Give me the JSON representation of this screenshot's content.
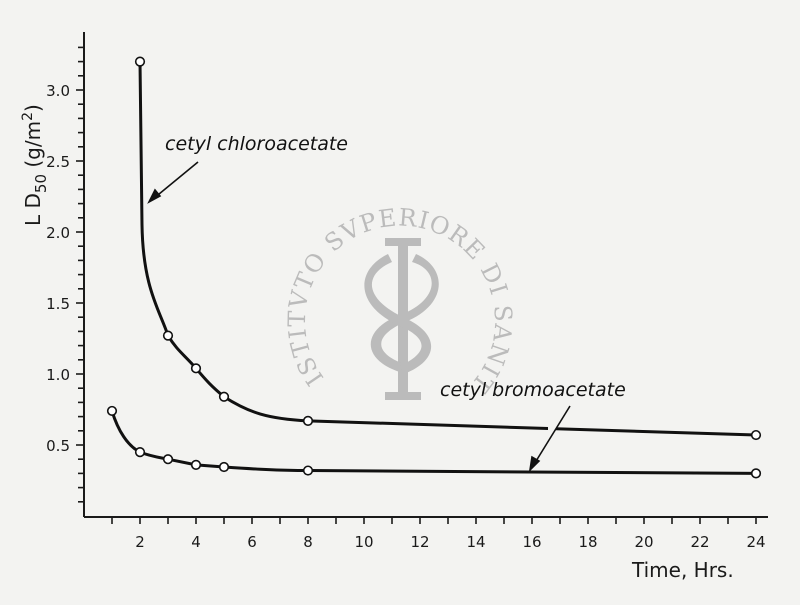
{
  "chart_data": {
    "type": "line",
    "title": "",
    "xlabel": "Time, Hrs.",
    "ylabel": "LD50 (g/m2)",
    "ylabel_parts": {
      "main": "L D",
      "sub": "50",
      "unit_open": " (g/m",
      "sup": "2",
      "unit_close": ")"
    },
    "xlim": [
      0,
      25
    ],
    "ylim": [
      0,
      3.4
    ],
    "x_ticks": [
      2,
      4,
      6,
      8,
      10,
      12,
      14,
      16,
      18,
      20,
      22,
      24
    ],
    "x_minor_ticks": [
      1,
      3,
      5,
      7,
      9,
      11,
      13,
      15,
      17,
      19,
      21,
      23
    ],
    "y_ticks": [
      0.5,
      1.0,
      1.5,
      2.0,
      2.5,
      3.0
    ],
    "y_tick_labels": [
      "0.5",
      "1.0",
      "1.5",
      "2.0",
      "2.5",
      "3.0"
    ],
    "y_minor_step": 0.1,
    "grid": false,
    "legend": "inline annotations with arrows",
    "series": [
      {
        "name": "cetyl chloroacetate",
        "marker": "open-circle",
        "x": [
          2,
          3,
          4,
          5,
          8,
          24
        ],
        "values": [
          3.2,
          1.27,
          1.04,
          0.84,
          0.67,
          0.57
        ]
      },
      {
        "name": "cetyl bromoacetate",
        "marker": "open-circle",
        "x": [
          1,
          2,
          3,
          4,
          5,
          8,
          24
        ],
        "values": [
          0.74,
          0.45,
          0.4,
          0.36,
          0.345,
          0.32,
          0.3
        ]
      }
    ],
    "annotations": [
      {
        "text": "cetyl chloroacetate",
        "points_to_series": 0
      },
      {
        "text": "cetyl bromoacetate",
        "points_to_series": 1
      }
    ]
  },
  "watermark": {
    "text": "ISTITVTO SVPERIORE DI SANITA",
    "emblem": "caduceus-icon"
  }
}
